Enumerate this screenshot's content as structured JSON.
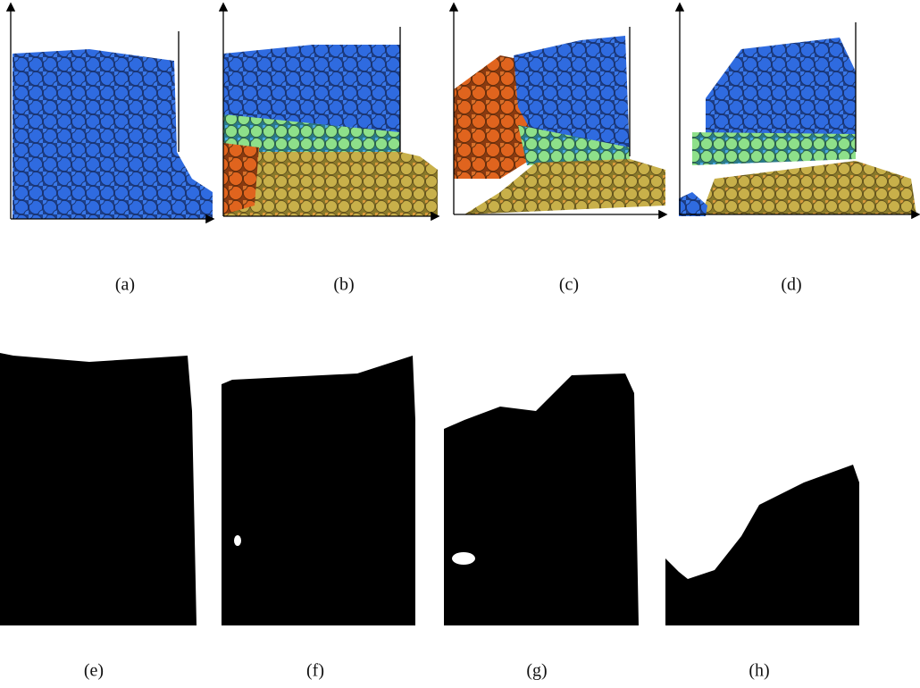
{
  "panels": [
    {
      "caption": "(a)"
    },
    {
      "caption": "(b)"
    },
    {
      "caption": "(c)"
    },
    {
      "caption": "(d)"
    },
    {
      "caption": "(e)"
    },
    {
      "caption": "(f)"
    },
    {
      "caption": "(g)"
    },
    {
      "caption": "(h)"
    }
  ]
}
